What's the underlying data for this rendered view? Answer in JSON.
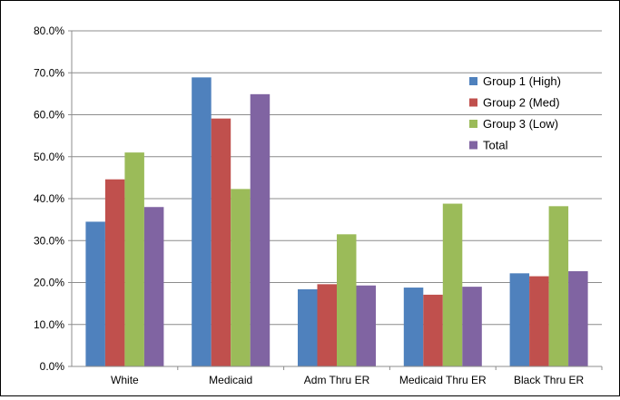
{
  "chart_data": {
    "type": "bar",
    "categories": [
      "White",
      "Medicaid",
      "Adm Thru ER",
      "Medicaid Thru ER",
      "Black Thru ER"
    ],
    "series": [
      {
        "name": "Group 1 (High)",
        "color": "#4f81bd",
        "values": [
          34.5,
          68.9,
          18.4,
          18.8,
          22.2
        ]
      },
      {
        "name": "Group 2 (Med)",
        "color": "#c0504d",
        "values": [
          44.6,
          59.1,
          19.6,
          17.1,
          21.5
        ]
      },
      {
        "name": "Group 3 (Low)",
        "color": "#9bbb59",
        "values": [
          51.0,
          42.3,
          31.5,
          38.8,
          38.2
        ]
      },
      {
        "name": "Total",
        "color": "#8064a2",
        "values": [
          38.0,
          64.9,
          19.3,
          19.0,
          22.7
        ]
      }
    ],
    "y_ticks": [
      "0.0%",
      "10.0%",
      "20.0%",
      "30.0%",
      "40.0%",
      "50.0%",
      "60.0%",
      "70.0%",
      "80.0%"
    ],
    "ylim": [
      0,
      80
    ],
    "title": "",
    "xlabel": "",
    "ylabel": "",
    "grid": true,
    "legend_position": "top-right"
  }
}
